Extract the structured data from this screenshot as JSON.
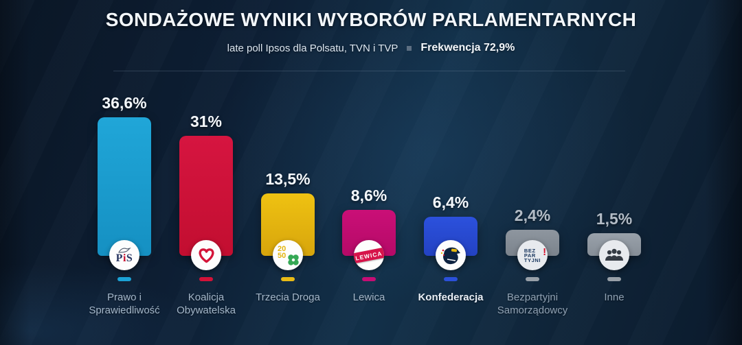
{
  "header": {
    "title": "SONDAŻOWE WYNIKI WYBORÓW PARLAMENTARNYCH",
    "subtitle": "late poll Ipsos dla Polsatu, TVN i TVP",
    "turnout": "Frekwencja 72,9%"
  },
  "chart_data": {
    "type": "bar",
    "title": "SONDAŻOWE WYNIKI WYBORÓW PARLAMENTARNYCH",
    "subtitle": "late poll Ipsos dla Polsatu, TVN i TVP",
    "annotation": "Frekwencja 72,9%",
    "categories": [
      "Prawo i Sprawiedliwość",
      "Koalicja Obywatelska",
      "Trzecia Droga",
      "Lewica",
      "Konfederacja",
      "Bezpartyjni Samorządowcy",
      "Inne"
    ],
    "values": [
      36.6,
      31,
      13.5,
      8.6,
      6.4,
      2.4,
      1.5
    ],
    "value_labels": [
      "36,6%",
      "31%",
      "13,5%",
      "8,6%",
      "6,4%",
      "2,4%",
      "1,5%"
    ],
    "bar_colors": [
      "#1fa5d7",
      "#d41439",
      "#eec011",
      "#c90e75",
      "#2b50dc",
      "#8d959e",
      "#98a0a8"
    ],
    "ylim": [
      0,
      40
    ],
    "grid": false,
    "legend_position": "color-dash-below-each-bar"
  },
  "parties": [
    {
      "name_lines": [
        "Prawo i",
        "Sprawiedliwość"
      ],
      "value": 36.6,
      "value_label": "36,6%",
      "color_top": "#20a6d8",
      "color_bottom": "#1590c2",
      "dash_color": "#1ba2d6",
      "logo": "pis-eagle-logo",
      "logo_text": "PiS",
      "dim": false,
      "bright_name": false
    },
    {
      "name_lines": [
        "Koalicja",
        "Obywatelska"
      ],
      "value": 31,
      "value_label": "31%",
      "color_top": "#d61540",
      "color_bottom": "#c20e30",
      "dash_color": "#d31238",
      "logo": "ko-heart-logo",
      "dim": false,
      "bright_name": false
    },
    {
      "name_lines": [
        "Trzecia Droga"
      ],
      "value": 13.5,
      "value_label": "13,5%",
      "color_top": "#efc212",
      "color_bottom": "#d7a50c",
      "dash_color": "#e9bb16",
      "logo": "trzecia-droga-2050-clover-logo",
      "logo_text_lines": [
        "20",
        "50"
      ],
      "dim": false,
      "bright_name": false
    },
    {
      "name_lines": [
        "Lewica"
      ],
      "value": 8.6,
      "value_label": "8,6%",
      "color_top": "#ca0f77",
      "color_bottom": "#b50a67",
      "dash_color": "#c60d74",
      "logo": "lewica-banner-logo",
      "logo_text": "LEWICA",
      "dim": false,
      "bright_name": false
    },
    {
      "name_lines": [
        "Konfederacja"
      ],
      "value": 6.4,
      "value_label": "6,4%",
      "color_top": "#2c51dd",
      "color_bottom": "#2342c2",
      "dash_color": "#2b50d9",
      "logo": "konfederacja-eagle-logo",
      "dim": false,
      "bright_name": true
    },
    {
      "name_lines": [
        "Bezpartyjni",
        "Samorządowcy"
      ],
      "value": 2.4,
      "value_label": "2,4%",
      "color_top": "#8e969f",
      "color_bottom": "#7b838c",
      "dash_color": "#98a0a8",
      "logo": "bezpartyjni-text-logo",
      "logo_text_lines": [
        "BEZ",
        "PAR",
        "TYJNI"
      ],
      "logo_mark": "!",
      "dim": true,
      "bright_name": false
    },
    {
      "name_lines": [
        "Inne"
      ],
      "value": 1.5,
      "value_label": "1,5%",
      "color_top": "#99a1aa",
      "color_bottom": "#868e97",
      "dash_color": "#98a0a8",
      "logo": "people-group-icon",
      "dim": true,
      "bright_name": false
    }
  ]
}
